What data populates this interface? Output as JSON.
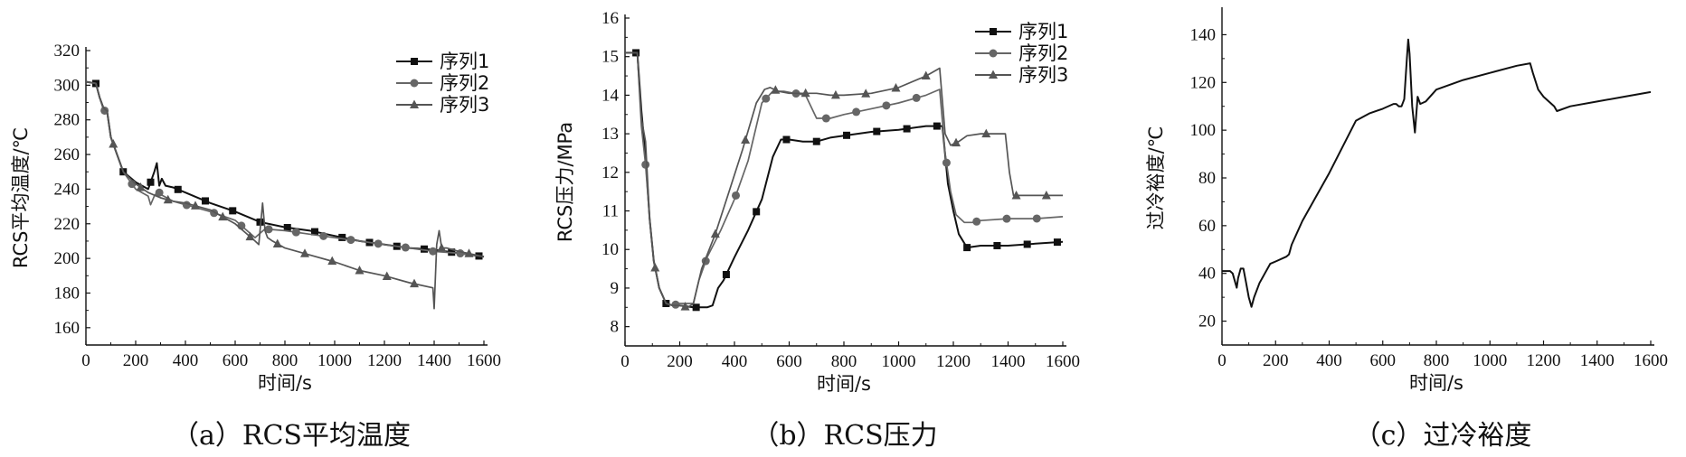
{
  "chart_data": [
    {
      "type": "line",
      "caption": "（a）RCS平均温度",
      "xlabel": "时间/s",
      "ylabel": "RCS平均温度/℃",
      "xlim": [
        0,
        1600
      ],
      "ylim": [
        150,
        320
      ],
      "xticks": [
        0,
        200,
        400,
        600,
        800,
        1000,
        1200,
        1400,
        1600
      ],
      "yticks": [
        160,
        180,
        200,
        220,
        240,
        260,
        280,
        300,
        320
      ],
      "legend_position": "top-right",
      "series": [
        {
          "name": "序列1",
          "color": "#111111",
          "marker": "square",
          "x": [
            0,
            40,
            55,
            70,
            85,
            100,
            150,
            200,
            250,
            275,
            285,
            295,
            305,
            320,
            350,
            400,
            500,
            600,
            700,
            800,
            900,
            1000,
            1100,
            1200,
            1300,
            1400,
            1500,
            1600
          ],
          "y": [
            302,
            301,
            293,
            287,
            285,
            270,
            250,
            244,
            240,
            250,
            255,
            242,
            246,
            242,
            241,
            238,
            232,
            227,
            221,
            218,
            216,
            213,
            210,
            208,
            206,
            205,
            203,
            201
          ]
        },
        {
          "name": "序列2",
          "color": "#666666",
          "marker": "circle",
          "x": [
            0,
            40,
            55,
            70,
            85,
            100,
            150,
            200,
            250,
            260,
            275,
            290,
            300,
            350,
            400,
            500,
            600,
            680,
            720,
            800,
            900,
            1000,
            1100,
            1200,
            1300,
            1400,
            1500,
            1600
          ],
          "y": [
            302,
            301,
            293,
            286,
            284,
            270,
            250,
            240,
            236,
            231,
            236,
            239,
            237,
            233,
            231,
            227,
            222,
            212,
            217,
            216,
            214,
            212,
            210,
            208,
            206,
            204,
            203,
            201
          ]
        },
        {
          "name": "序列3",
          "color": "#555555",
          "marker": "triangle",
          "x": [
            0,
            40,
            55,
            70,
            85,
            100,
            150,
            200,
            250,
            300,
            350,
            400,
            500,
            600,
            680,
            695,
            710,
            720,
            730,
            750,
            800,
            900,
            1000,
            1100,
            1200,
            1300,
            1395,
            1400,
            1410,
            1420,
            1430,
            1450,
            1500,
            1600
          ],
          "y": [
            302,
            301,
            293,
            287,
            285,
            270,
            250,
            243,
            238,
            235,
            233,
            232,
            228,
            220,
            210,
            208,
            232,
            216,
            212,
            210,
            206,
            202,
            198,
            193,
            190,
            186,
            183,
            171,
            208,
            216,
            206,
            206,
            204,
            201
          ]
        }
      ]
    },
    {
      "type": "line",
      "caption": "（b）RCS压力",
      "xlabel": "时间/s",
      "ylabel": "RCS压力/MPa",
      "xlim": [
        0,
        1600
      ],
      "ylim": [
        7.5,
        16
      ],
      "xticks": [
        0,
        200,
        400,
        600,
        800,
        1000,
        1200,
        1400,
        1600
      ],
      "yticks": [
        8,
        9,
        10,
        11,
        12,
        13,
        14,
        15,
        16
      ],
      "legend_position": "top-right",
      "series": [
        {
          "name": "序列1",
          "color": "#111111",
          "marker": "square",
          "x": [
            0,
            45,
            60,
            75,
            90,
            105,
            125,
            150,
            175,
            200,
            250,
            300,
            320,
            340,
            360,
            400,
            450,
            500,
            540,
            570,
            600,
            650,
            700,
            750,
            800,
            900,
            1000,
            1100,
            1160,
            1180,
            1200,
            1220,
            1250,
            1300,
            1400,
            1500,
            1600
          ],
          "y": [
            15.1,
            15.1,
            13.6,
            12.4,
            10.8,
            9.7,
            9.0,
            8.6,
            8.55,
            8.55,
            8.5,
            8.5,
            8.55,
            9.0,
            9.2,
            9.8,
            10.5,
            11.3,
            12.4,
            12.85,
            12.85,
            12.8,
            12.8,
            12.9,
            12.95,
            13.05,
            13.1,
            13.2,
            13.2,
            11.7,
            11.0,
            10.4,
            10.05,
            10.1,
            10.1,
            10.15,
            10.2
          ]
        },
        {
          "name": "序列2",
          "color": "#666666",
          "marker": "circle",
          "x": [
            0,
            45,
            60,
            75,
            90,
            105,
            125,
            150,
            175,
            200,
            230,
            250,
            270,
            300,
            350,
            400,
            450,
            500,
            540,
            580,
            620,
            660,
            700,
            750,
            800,
            900,
            1000,
            1100,
            1150,
            1170,
            1190,
            1210,
            1240,
            1270,
            1300,
            1400,
            1500,
            1600
          ],
          "y": [
            15.1,
            15.1,
            13.2,
            12.2,
            10.8,
            9.7,
            9.0,
            8.6,
            8.55,
            8.6,
            8.6,
            8.6,
            9.2,
            9.8,
            10.5,
            11.3,
            12.3,
            13.8,
            14.1,
            14.1,
            14.05,
            14.0,
            13.4,
            13.4,
            13.5,
            13.65,
            13.8,
            14.0,
            14.15,
            12.5,
            11.5,
            10.9,
            10.7,
            10.7,
            10.75,
            10.8,
            10.8,
            10.85
          ]
        },
        {
          "name": "序列3",
          "color": "#555555",
          "marker": "triangle",
          "x": [
            0,
            45,
            60,
            75,
            90,
            105,
            125,
            150,
            175,
            200,
            230,
            250,
            280,
            330,
            380,
            430,
            480,
            510,
            530,
            560,
            600,
            680,
            700,
            750,
            800,
            900,
            1000,
            1100,
            1150,
            1170,
            1190,
            1220,
            1250,
            1300,
            1350,
            1390,
            1405,
            1420,
            1500,
            1600
          ],
          "y": [
            15.1,
            15.1,
            13.4,
            12.8,
            10.8,
            9.7,
            9.0,
            8.6,
            8.55,
            8.55,
            8.5,
            8.6,
            9.5,
            10.4,
            11.5,
            12.6,
            13.8,
            14.15,
            14.2,
            14.1,
            14.05,
            14.05,
            14.05,
            14.0,
            14.0,
            14.05,
            14.2,
            14.5,
            14.7,
            13.0,
            12.7,
            12.8,
            12.95,
            13.0,
            13.0,
            13.0,
            12.0,
            11.4,
            11.4,
            11.4
          ]
        }
      ]
    },
    {
      "type": "line",
      "caption": "（c）过冷裕度",
      "xlabel": "时间/s",
      "ylabel": "过冷裕度/℃",
      "xlim": [
        0,
        1600
      ],
      "ylim": [
        10,
        150
      ],
      "xticks": [
        0,
        200,
        400,
        600,
        800,
        1000,
        1200,
        1400,
        1600
      ],
      "yticks": [
        20,
        40,
        60,
        80,
        100,
        120,
        140
      ],
      "series": [
        {
          "color": "#111111",
          "marker": "none",
          "x": [
            0,
            30,
            40,
            50,
            55,
            60,
            70,
            80,
            90,
            100,
            110,
            120,
            140,
            160,
            180,
            200,
            240,
            250,
            260,
            300,
            400,
            500,
            550,
            600,
            640,
            650,
            660,
            670,
            680,
            690,
            695,
            700,
            710,
            720,
            730,
            740,
            760,
            800,
            900,
            1000,
            1100,
            1150,
            1160,
            1180,
            1200,
            1240,
            1250,
            1300,
            1400,
            1500,
            1600
          ],
          "y": [
            41,
            41,
            40,
            36,
            34,
            38,
            42,
            42,
            36,
            30,
            26,
            30,
            36,
            40,
            44,
            45,
            47,
            48,
            52,
            62,
            82,
            104,
            107,
            109,
            111,
            111,
            110,
            110,
            113,
            130,
            138,
            132,
            110,
            99,
            114,
            111,
            112,
            117,
            121,
            124,
            127,
            128,
            124,
            117,
            114,
            110,
            108,
            110,
            112,
            114,
            116
          ]
        }
      ]
    }
  ]
}
